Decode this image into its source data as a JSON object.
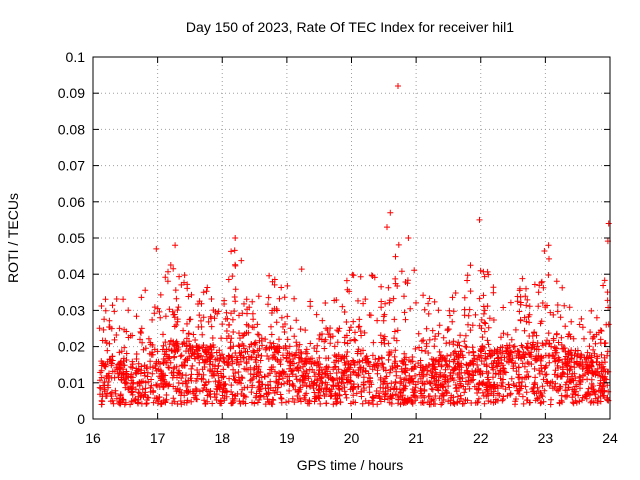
{
  "chart_data": {
    "type": "scatter",
    "title": "Day 150 of 2023, Rate Of TEC Index for receiver hil1",
    "xlabel": "GPS time / hours",
    "ylabel": "ROTI / TECUs",
    "xlim": [
      16,
      24
    ],
    "ylim": [
      0,
      0.1
    ],
    "x_ticks": [
      16,
      17,
      18,
      19,
      20,
      21,
      22,
      23,
      24
    ],
    "x_tick_labels": [
      "16",
      "17",
      "18",
      "19",
      "20",
      "21",
      "22",
      "23",
      "24"
    ],
    "y_ticks": [
      0,
      0.01,
      0.02,
      0.03,
      0.04,
      0.05,
      0.06,
      0.07,
      0.08,
      0.09,
      0.1
    ],
    "y_tick_labels": [
      "0",
      "0.01",
      "0.02",
      "0.03",
      "0.04",
      "0.05",
      "0.06",
      "0.07",
      "0.08",
      "0.09",
      "0.1"
    ],
    "grid": true,
    "marker": "+",
    "series_color": "#ff0000",
    "notable_points": [
      {
        "x": 20.72,
        "y": 0.092
      },
      {
        "x": 20.6,
        "y": 0.057
      },
      {
        "x": 20.55,
        "y": 0.053
      },
      {
        "x": 21.98,
        "y": 0.055
      },
      {
        "x": 23.98,
        "y": 0.054
      },
      {
        "x": 18.2,
        "y": 0.05
      },
      {
        "x": 23.05,
        "y": 0.048
      },
      {
        "x": 17.27,
        "y": 0.048
      },
      {
        "x": 16.98,
        "y": 0.047
      },
      {
        "x": 20.88,
        "y": 0.05
      }
    ],
    "envelope": {
      "x": [
        16.1,
        16.3,
        16.5,
        16.7,
        16.9,
        17.0,
        17.2,
        17.4,
        17.6,
        17.8,
        18.0,
        18.2,
        18.4,
        18.6,
        18.8,
        19.0,
        19.2,
        19.4,
        19.6,
        19.8,
        20.0,
        20.2,
        20.4,
        20.6,
        20.8,
        21.0,
        21.2,
        21.4,
        21.6,
        21.8,
        22.0,
        22.2,
        22.4,
        22.6,
        22.8,
        23.0,
        23.2,
        23.4,
        23.6,
        23.8,
        24.0
      ],
      "y_upper": [
        0.037,
        0.036,
        0.035,
        0.033,
        0.038,
        0.046,
        0.047,
        0.04,
        0.038,
        0.04,
        0.046,
        0.05,
        0.045,
        0.04,
        0.04,
        0.04,
        0.045,
        0.035,
        0.032,
        0.036,
        0.042,
        0.043,
        0.045,
        0.056,
        0.05,
        0.04,
        0.035,
        0.033,
        0.036,
        0.04,
        0.055,
        0.04,
        0.035,
        0.038,
        0.042,
        0.048,
        0.04,
        0.03,
        0.028,
        0.032,
        0.054
      ],
      "y_base": [
        0.012,
        0.013,
        0.012,
        0.012,
        0.014,
        0.014,
        0.016,
        0.016,
        0.015,
        0.015,
        0.014,
        0.015,
        0.015,
        0.016,
        0.015,
        0.015,
        0.014,
        0.013,
        0.013,
        0.013,
        0.013,
        0.014,
        0.013,
        0.014,
        0.013,
        0.012,
        0.013,
        0.013,
        0.014,
        0.015,
        0.015,
        0.014,
        0.015,
        0.015,
        0.015,
        0.016,
        0.015,
        0.014,
        0.013,
        0.013,
        0.014
      ]
    }
  }
}
